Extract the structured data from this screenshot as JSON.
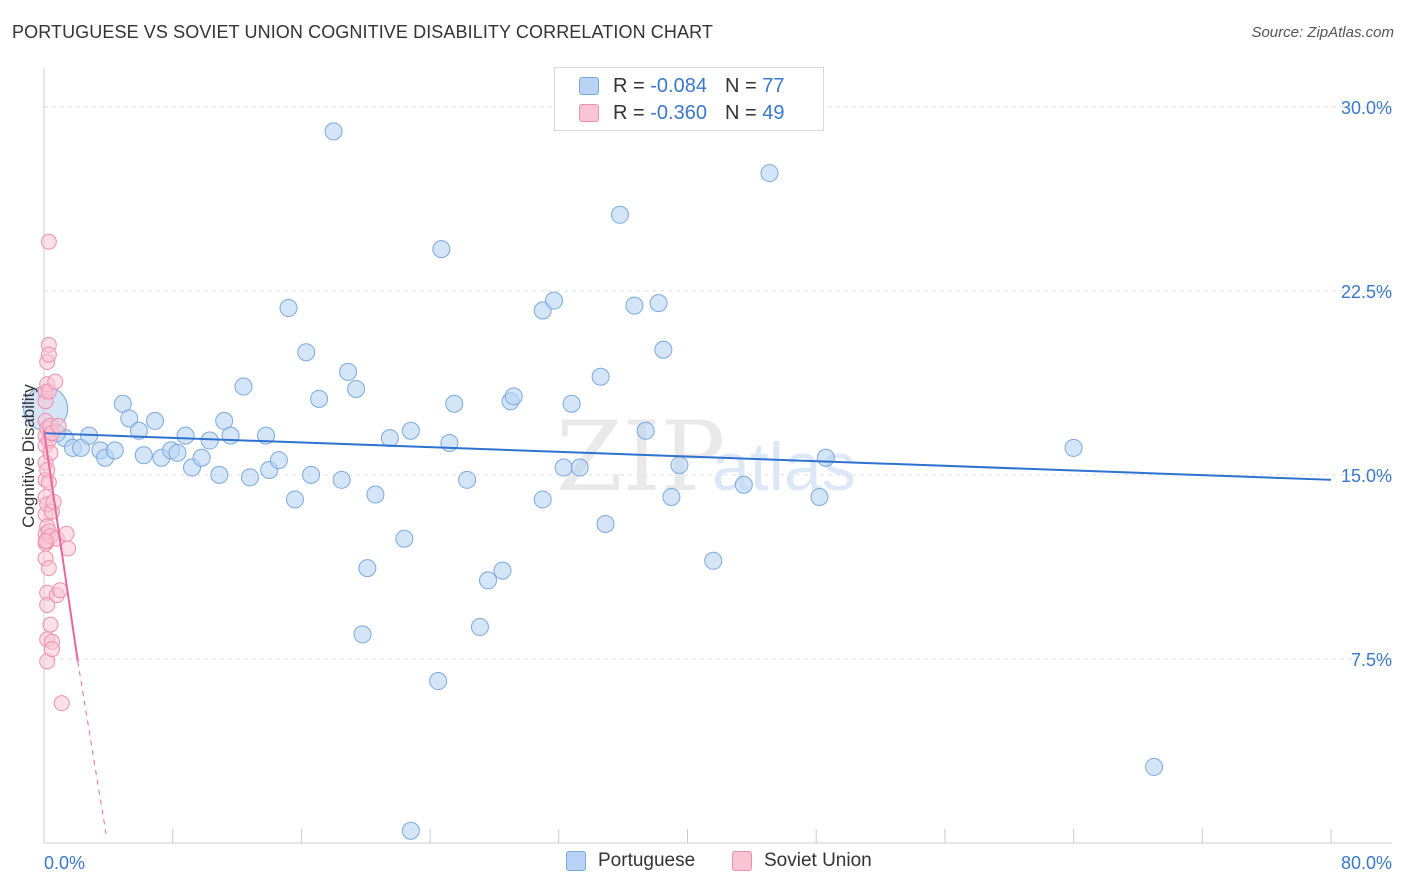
{
  "title": "PORTUGUESE VS SOVIET UNION COGNITIVE DISABILITY CORRELATION CHART",
  "source": "Source: ZipAtlas.com",
  "watermark": {
    "zip": "ZIP",
    "atlas": "atlas"
  },
  "legend_top": [
    {
      "r_label": "R = ",
      "r_value": "-0.084",
      "n_label": "N = ",
      "n_value": "77"
    },
    {
      "r_label": "R = ",
      "r_value": "-0.360",
      "n_label": "N = ",
      "n_value": "49"
    }
  ],
  "colors": {
    "portuguese_fill": "#b8d3f4",
    "portuguese_stroke": "#7aa9e0",
    "portuguese_line": "#2e72d0",
    "soviet_fill": "#f9c4d4",
    "soviet_stroke": "#ee8fae",
    "soviet_line": "#e8689a",
    "axis_text": "#3a78c9",
    "grid": "#dddddd"
  },
  "chart_data": {
    "type": "scatter",
    "title": "PORTUGUESE VS SOVIET UNION COGNITIVE DISABILITY CORRELATION CHART",
    "xlabel": "",
    "ylabel": "Cognitive Disability",
    "xlim": [
      0,
      80
    ],
    "ylim": [
      0,
      31.5
    ],
    "x_tick_labels": [
      "0.0%",
      "80.0%"
    ],
    "y_ticks": [
      7.5,
      15.0,
      22.5,
      30.0
    ],
    "y_tick_labels": [
      "7.5%",
      "15.0%",
      "22.5%",
      "30.0%"
    ],
    "grid": true,
    "legend_position": "bottom",
    "series": [
      {
        "name": "Portuguese",
        "r": -0.084,
        "n": 77,
        "trend": {
          "x": [
            0,
            80
          ],
          "y": [
            16.7,
            14.8
          ]
        },
        "points": [
          [
            0.1,
            17.7
          ],
          [
            1.3,
            16.5
          ],
          [
            1.8,
            16.1
          ],
          [
            2.3,
            16.1
          ],
          [
            2.8,
            16.6
          ],
          [
            3.5,
            16.0
          ],
          [
            3.8,
            15.7
          ],
          [
            4.4,
            16.0
          ],
          [
            4.9,
            17.9
          ],
          [
            5.3,
            17.3
          ],
          [
            5.9,
            16.8
          ],
          [
            6.2,
            15.8
          ],
          [
            6.9,
            17.2
          ],
          [
            7.3,
            15.7
          ],
          [
            7.9,
            16.0
          ],
          [
            8.3,
            15.9
          ],
          [
            8.8,
            16.6
          ],
          [
            9.2,
            15.3
          ],
          [
            9.8,
            15.7
          ],
          [
            10.3,
            16.4
          ],
          [
            10.9,
            15.0
          ],
          [
            11.2,
            17.2
          ],
          [
            11.6,
            16.6
          ],
          [
            12.4,
            18.6
          ],
          [
            12.8,
            14.9
          ],
          [
            13.8,
            16.6
          ],
          [
            14.0,
            15.2
          ],
          [
            14.6,
            15.6
          ],
          [
            15.2,
            21.8
          ],
          [
            15.6,
            14.0
          ],
          [
            16.3,
            20.0
          ],
          [
            16.6,
            15.0
          ],
          [
            17.1,
            18.1
          ],
          [
            18.0,
            29.0
          ],
          [
            18.5,
            14.8
          ],
          [
            18.9,
            19.2
          ],
          [
            19.4,
            18.5
          ],
          [
            19.8,
            8.5
          ],
          [
            20.1,
            11.2
          ],
          [
            20.6,
            14.2
          ],
          [
            21.5,
            16.5
          ],
          [
            22.4,
            12.4
          ],
          [
            22.8,
            16.8
          ],
          [
            22.8,
            0.5
          ],
          [
            24.5,
            6.6
          ],
          [
            24.7,
            24.2
          ],
          [
            25.2,
            16.3
          ],
          [
            25.5,
            17.9
          ],
          [
            26.3,
            14.8
          ],
          [
            27.1,
            8.8
          ],
          [
            27.6,
            10.7
          ],
          [
            28.5,
            11.1
          ],
          [
            29.0,
            18.0
          ],
          [
            29.2,
            18.2
          ],
          [
            31.0,
            14.0
          ],
          [
            31.0,
            21.7
          ],
          [
            31.7,
            22.1
          ],
          [
            32.3,
            15.3
          ],
          [
            32.8,
            17.9
          ],
          [
            33.3,
            15.3
          ],
          [
            34.6,
            19.0
          ],
          [
            34.9,
            13.0
          ],
          [
            35.8,
            25.6
          ],
          [
            36.7,
            21.9
          ],
          [
            37.4,
            16.8
          ],
          [
            38.2,
            22.0
          ],
          [
            38.5,
            20.1
          ],
          [
            39.0,
            14.1
          ],
          [
            39.5,
            15.4
          ],
          [
            41.6,
            11.5
          ],
          [
            43.5,
            14.6
          ],
          [
            45.1,
            27.3
          ],
          [
            48.2,
            14.1
          ],
          [
            48.6,
            15.7
          ],
          [
            64.0,
            16.1
          ],
          [
            69.0,
            3.1
          ],
          [
            0.8,
            16.7
          ]
        ]
      },
      {
        "name": "Soviet Union",
        "r": -0.36,
        "n": 49,
        "trend": {
          "x": [
            0,
            2.1
          ],
          "y": [
            16.8,
            7.4
          ]
        },
        "trend_dashed": {
          "x": [
            2.1,
            3.9
          ],
          "y": [
            7.4,
            0.2
          ]
        },
        "points": [
          [
            0.1,
            18.4
          ],
          [
            0.1,
            18.0
          ],
          [
            0.1,
            17.2
          ],
          [
            0.1,
            16.6
          ],
          [
            0.1,
            16.2
          ],
          [
            0.1,
            15.5
          ],
          [
            0.1,
            14.8
          ],
          [
            0.1,
            14.1
          ],
          [
            0.1,
            13.4
          ],
          [
            0.1,
            12.6
          ],
          [
            0.1,
            12.2
          ],
          [
            0.1,
            11.6
          ],
          [
            0.2,
            19.6
          ],
          [
            0.2,
            18.7
          ],
          [
            0.2,
            16.9
          ],
          [
            0.2,
            15.2
          ],
          [
            0.2,
            13.8
          ],
          [
            0.2,
            12.9
          ],
          [
            0.2,
            12.3
          ],
          [
            0.2,
            10.2
          ],
          [
            0.2,
            9.7
          ],
          [
            0.2,
            8.3
          ],
          [
            0.2,
            7.4
          ],
          [
            0.3,
            24.5
          ],
          [
            0.3,
            20.3
          ],
          [
            0.3,
            19.9
          ],
          [
            0.3,
            18.4
          ],
          [
            0.3,
            16.4
          ],
          [
            0.3,
            14.7
          ],
          [
            0.3,
            12.7
          ],
          [
            0.3,
            11.2
          ],
          [
            0.4,
            17.0
          ],
          [
            0.4,
            15.9
          ],
          [
            0.4,
            12.5
          ],
          [
            0.4,
            8.9
          ],
          [
            0.5,
            16.7
          ],
          [
            0.5,
            13.5
          ],
          [
            0.5,
            8.2
          ],
          [
            0.5,
            7.9
          ],
          [
            0.6,
            13.9
          ],
          [
            0.7,
            18.8
          ],
          [
            0.8,
            12.4
          ],
          [
            0.8,
            10.1
          ],
          [
            0.9,
            17.0
          ],
          [
            1.0,
            10.3
          ],
          [
            1.1,
            5.7
          ],
          [
            1.4,
            12.6
          ],
          [
            1.5,
            12.0
          ],
          [
            0.1,
            12.3
          ]
        ]
      }
    ]
  },
  "legend_bottom": [
    "Portuguese",
    "Soviet Union"
  ]
}
